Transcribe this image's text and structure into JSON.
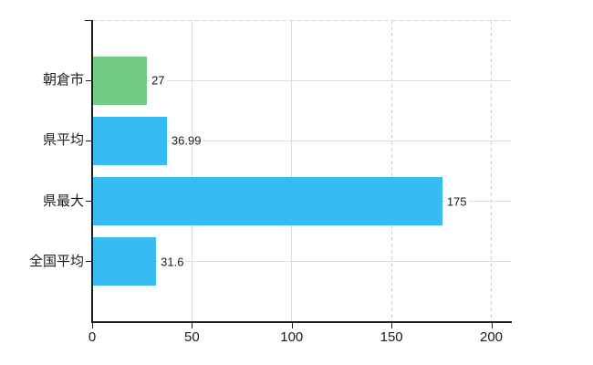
{
  "chart_data": {
    "type": "bar",
    "orientation": "horizontal",
    "title": "",
    "xlabel": "",
    "ylabel": "",
    "legend": "none",
    "grid": true,
    "categories": [
      "朝倉市",
      "県平均",
      "県最大",
      "全国平均"
    ],
    "values": [
      27,
      36.99,
      175,
      31.6
    ],
    "value_labels": [
      "27",
      "36.99",
      "175",
      "31.6"
    ],
    "bar_colors": [
      "#72cc83",
      "#36bbf2",
      "#36bbf2",
      "#36bbf2"
    ],
    "xlim": [
      0,
      200
    ],
    "x_ticks": [
      {
        "value": 0,
        "label": "0",
        "gridline": "none"
      },
      {
        "value": 50,
        "label": "50",
        "gridline": "solid"
      },
      {
        "value": 100,
        "label": "100",
        "gridline": "solid"
      },
      {
        "value": 150,
        "label": "150",
        "gridline": "dashed"
      },
      {
        "value": 200,
        "label": "200",
        "gridline": "dashed"
      }
    ],
    "colors": {
      "axis": "#1c1c1c",
      "grid_solid": "#dcdcdc",
      "grid_dashed": "#d6d2cb",
      "top_border": "#d9d9d9",
      "text": "#1a1a1a",
      "background": "#ffffff"
    }
  }
}
